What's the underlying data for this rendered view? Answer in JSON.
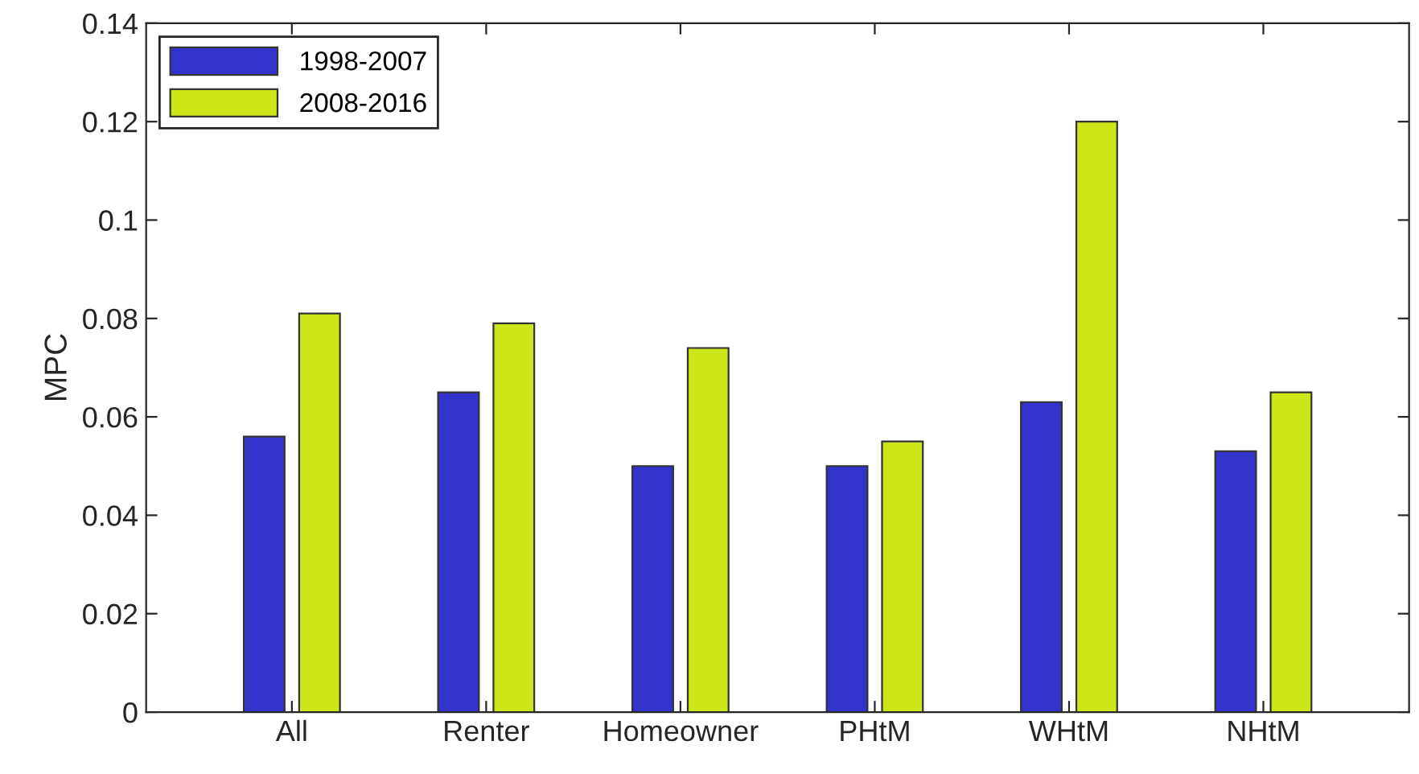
{
  "chart_data": {
    "type": "bar",
    "ylabel": "MPC",
    "categories": [
      "All",
      "Renter",
      "Homeowner",
      "PHtM",
      "WHtM",
      "NHtM"
    ],
    "series": [
      {
        "name": "1998-2007",
        "color": "#3333cc",
        "values": [
          0.056,
          0.065,
          0.05,
          0.05,
          0.063,
          0.053
        ]
      },
      {
        "name": "2008-2016",
        "color": "#cce619",
        "values": [
          0.081,
          0.079,
          0.074,
          0.055,
          0.12,
          0.065
        ]
      }
    ],
    "ylim": [
      0,
      0.14
    ],
    "yticks": [
      0,
      0.02,
      0.04,
      0.06,
      0.08,
      {
        "value": 0.1,
        "label": "0.1"
      },
      0.12,
      0.14
    ],
    "grid": false,
    "legend": "top left"
  }
}
